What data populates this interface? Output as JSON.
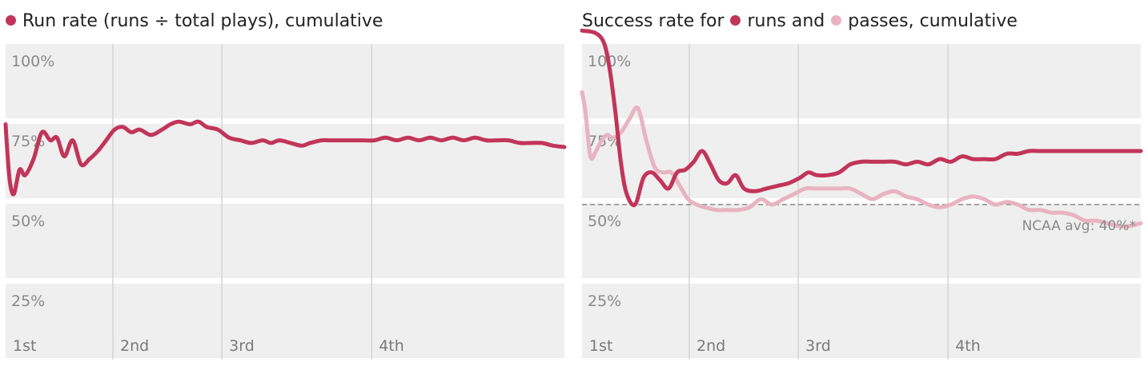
{
  "colors": {
    "runs": "#c2355a",
    "passes": "#e8b3c2",
    "band": "#efefef",
    "grid": "#d4d4d4",
    "ref": "#888888"
  },
  "left": {
    "title": "Run rate (runs ÷ total plays), cumulative",
    "title_dot_color": "#c2355a"
  },
  "right": {
    "title_part1": "Success rate for",
    "title_runs": "runs and",
    "title_passes": "passes, cumulative",
    "runs_color": "#c2355a",
    "passes_color": "#e8b3c2",
    "ref_label": "NCAA avg: 40%*"
  },
  "chart_data": [
    {
      "type": "line",
      "title": "Run rate (runs ÷ total plays), cumulative",
      "y_ticks": [
        "100%",
        "75%",
        "50%",
        "25%"
      ],
      "x_ticks": [
        "1st",
        "2nd",
        "3rd",
        "4th"
      ],
      "ylim": [
        0,
        105
      ],
      "xlim": [
        0,
        100
      ],
      "quarter_starts": [
        0,
        19.2,
        38.7,
        65.5
      ],
      "grid": true,
      "series": [
        {
          "color": "#c2355a",
          "x": [
            0,
            0.3,
            0.8,
            1.5,
            2.5,
            3.5,
            5,
            6.5,
            8,
            9.2,
            10.5,
            12,
            13.5,
            15,
            16.5,
            18,
            19.5,
            21,
            22.5,
            24,
            26,
            28,
            29.5,
            31,
            33,
            34.5,
            36,
            38,
            40,
            42,
            44,
            46,
            47.5,
            49,
            51,
            53,
            54.5,
            56.5,
            58,
            60,
            62,
            64,
            66,
            68,
            70,
            72,
            74,
            76,
            78,
            80,
            82,
            84,
            86,
            88,
            90,
            92,
            94,
            96,
            98,
            100
          ],
          "y": [
            70,
            60,
            48,
            44,
            53,
            51,
            57,
            67,
            64,
            65,
            58,
            64,
            55,
            57,
            60,
            64,
            68,
            69,
            67,
            68,
            66,
            68,
            70,
            71,
            70,
            71,
            69,
            68,
            65,
            64,
            63,
            64,
            63,
            64,
            63,
            62,
            63,
            64,
            64,
            64,
            64,
            64,
            64,
            65,
            64,
            65,
            64,
            65,
            64,
            65,
            64,
            65,
            64,
            64,
            64,
            63,
            63,
            63,
            62,
            61.5
          ]
        }
      ]
    },
    {
      "type": "line",
      "title": "Success rate for runs and passes, cumulative",
      "y_ticks": [
        "100%",
        "75%",
        "50%",
        "25%"
      ],
      "x_ticks": [
        "1st",
        "2nd",
        "3rd",
        "4th"
      ],
      "ylim": [
        0,
        105
      ],
      "xlim": [
        0,
        100
      ],
      "quarter_starts": [
        0,
        19.2,
        38.7,
        65.5
      ],
      "grid": true,
      "reference_line": {
        "y": 40,
        "label": "NCAA avg: 40%*"
      },
      "series": [
        {
          "name": "passes",
          "color": "#e8b3c2",
          "x": [
            0,
            0.6,
            1.5,
            2.5,
            3.5,
            4.5,
            5.5,
            7,
            8.5,
            10,
            11.5,
            13,
            14.5,
            16,
            17.5,
            19,
            20.5,
            22,
            24,
            26,
            28,
            30,
            32,
            34,
            36,
            38,
            40,
            42,
            44,
            46,
            48,
            50,
            52,
            54,
            56,
            58,
            60,
            62,
            64,
            66,
            68,
            70,
            72,
            74,
            76,
            78,
            80,
            82,
            84,
            86,
            88,
            90,
            92,
            94,
            96,
            98,
            100
          ],
          "y": [
            82,
            75,
            58,
            60,
            64,
            66,
            65,
            67,
            72,
            76,
            64,
            54,
            52,
            52,
            47,
            42,
            40,
            39,
            38,
            38,
            38,
            39,
            42,
            40,
            42,
            44,
            46,
            46,
            46,
            46,
            46,
            44,
            42,
            44,
            45,
            43,
            42,
            40,
            39,
            40,
            42,
            43,
            42,
            40,
            41,
            40,
            38,
            38,
            37,
            37,
            36,
            34,
            34,
            33,
            32,
            32,
            33
          ]
        },
        {
          "name": "runs",
          "color": "#c2355a",
          "x": [
            0,
            2.5,
            4,
            5,
            6,
            7,
            8,
            9.5,
            11,
            12.5,
            14,
            15.5,
            17,
            18.5,
            20,
            21.5,
            23,
            24.5,
            26,
            27.5,
            29,
            31,
            33,
            35,
            37,
            39,
            40.5,
            42,
            44,
            46,
            48,
            50,
            52,
            54,
            56,
            58,
            60,
            62,
            64,
            66,
            68,
            70,
            72,
            74,
            76,
            78,
            80,
            82,
            84,
            86,
            88,
            90,
            92,
            94,
            96,
            98,
            100
          ],
          "y": [
            105,
            104,
            100,
            90,
            74,
            55,
            44,
            40,
            50,
            52,
            49,
            46,
            52,
            53,
            56,
            60,
            55,
            49,
            48,
            51,
            46,
            45,
            46,
            47,
            48,
            50,
            52,
            51,
            51,
            52,
            55,
            56,
            56,
            56,
            56,
            55,
            56,
            55,
            57,
            56,
            58,
            57,
            57,
            57,
            59,
            59,
            60,
            60,
            60,
            60,
            60,
            60,
            60,
            60,
            60,
            60,
            60
          ]
        }
      ]
    }
  ]
}
